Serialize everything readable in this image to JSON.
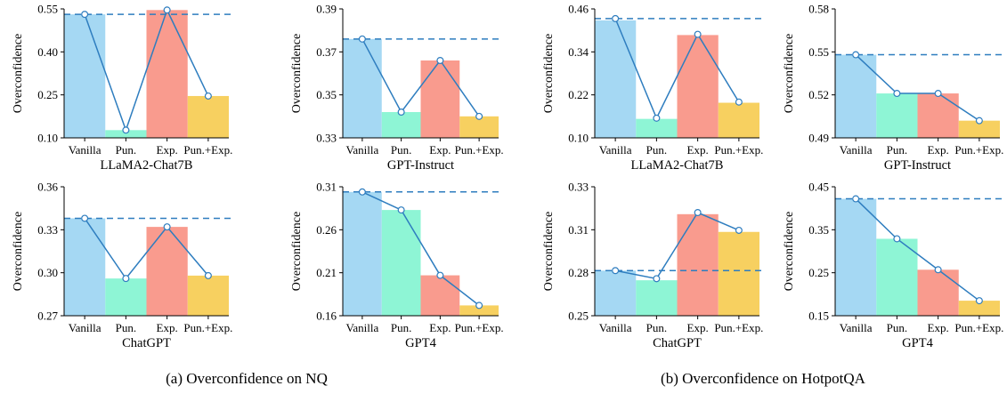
{
  "chart_data": [
    {
      "type": "bar",
      "panel": "(a)",
      "categories": [
        "Vanilla",
        "Pun.",
        "Exp.",
        "Pun.+Exp."
      ],
      "values": [
        0.531,
        0.127,
        0.546,
        0.246
      ],
      "line_values": [
        0.531,
        0.127,
        0.546,
        0.246
      ],
      "baseline": 0.531,
      "ylabel": "Overconfidence",
      "xlabel": "LLaMA2-Chat7B",
      "ylim": [
        0.1,
        0.55
      ],
      "yticks": [
        "0.10",
        "0.25",
        "0.40",
        "0.55"
      ]
    },
    {
      "type": "bar",
      "panel": "(a)",
      "categories": [
        "Vanilla",
        "Pun.",
        "Exp.",
        "Pun.+Exp."
      ],
      "values": [
        0.376,
        0.342,
        0.366,
        0.34
      ],
      "line_values": [
        0.376,
        0.342,
        0.366,
        0.34
      ],
      "baseline": 0.376,
      "ylabel": "Overconfidence",
      "xlabel": "GPT-Instruct",
      "ylim": [
        0.33,
        0.39
      ],
      "yticks": [
        "0.33",
        "0.35",
        "0.37",
        "0.39"
      ]
    },
    {
      "type": "bar",
      "panel": "(a)",
      "categories": [
        "Vanilla",
        "Pun.",
        "Exp.",
        "Pun.+Exp."
      ],
      "values": [
        0.338,
        0.296,
        0.332,
        0.298
      ],
      "line_values": [
        0.338,
        0.296,
        0.332,
        0.298
      ],
      "baseline": 0.338,
      "ylabel": "Overconfidence",
      "xlabel": "ChatGPT",
      "ylim": [
        0.27,
        0.36
      ],
      "yticks": [
        "0.27",
        "0.30",
        "0.33",
        "0.36"
      ]
    },
    {
      "type": "bar",
      "panel": "(a)",
      "categories": [
        "Vanilla",
        "Pun.",
        "Exp.",
        "Pun.+Exp."
      ],
      "values": [
        0.304,
        0.283,
        0.207,
        0.172
      ],
      "line_values": [
        0.304,
        0.283,
        0.207,
        0.172
      ],
      "baseline": 0.304,
      "ylabel": "Overconfidence",
      "xlabel": "GPT4",
      "ylim": [
        0.16,
        0.31
      ],
      "yticks": [
        "0.16",
        "0.21",
        "0.26",
        "0.31"
      ]
    },
    {
      "type": "bar",
      "panel": "(b)",
      "categories": [
        "Vanilla",
        "Pun.",
        "Exp.",
        "Pun.+Exp."
      ],
      "values": [
        0.428,
        0.153,
        0.387,
        0.198
      ],
      "line_values": [
        0.433,
        0.155,
        0.389,
        0.2
      ],
      "baseline": 0.433,
      "ylabel": "Overconfidence",
      "xlabel": "LLaMA2-Chat7B",
      "ylim": [
        0.1,
        0.46
      ],
      "yticks": [
        "0.10",
        "0.22",
        "0.34",
        "0.46"
      ]
    },
    {
      "type": "bar",
      "panel": "(b)",
      "categories": [
        "Vanilla",
        "Pun.",
        "Exp.",
        "Pun.+Exp."
      ],
      "values": [
        0.548,
        0.521,
        0.521,
        0.502
      ],
      "line_values": [
        0.548,
        0.521,
        0.521,
        0.502
      ],
      "baseline": 0.548,
      "ylabel": "Overconfidence",
      "xlabel": "GPT-Instruct",
      "ylim": [
        0.49,
        0.58
      ],
      "yticks": [
        "0.49",
        "0.52",
        "0.55",
        "0.58"
      ]
    },
    {
      "type": "bar",
      "panel": "(b)",
      "categories": [
        "Vanilla",
        "Pun.",
        "Exp.",
        "Pun.+Exp."
      ],
      "values": [
        0.278,
        0.272,
        0.313,
        0.302
      ],
      "line_values": [
        0.278,
        0.273,
        0.314,
        0.303
      ],
      "baseline": 0.278,
      "ylabel": "Overconfidence",
      "xlabel": "ChatGPT",
      "ylim": [
        0.25,
        0.33
      ],
      "yticks": [
        "0.25",
        "0.28",
        "0.31",
        "0.33"
      ]
    },
    {
      "type": "bar",
      "panel": "(b)",
      "categories": [
        "Vanilla",
        "Pun.",
        "Exp.",
        "Pun.+Exp."
      ],
      "values": [
        0.422,
        0.329,
        0.257,
        0.185
      ],
      "line_values": [
        0.422,
        0.329,
        0.257,
        0.185
      ],
      "baseline": 0.422,
      "ylabel": "Overconfidence",
      "xlabel": "GPT4",
      "ylim": [
        0.15,
        0.45
      ],
      "yticks": [
        "0.15",
        "0.25",
        "0.35",
        "0.45"
      ]
    }
  ],
  "bar_colors": [
    "#a5d8f3",
    "#8ef5d5",
    "#f99b8e",
    "#f7d060"
  ],
  "line_color": "#2e7dbf",
  "captions": [
    "(a)  Overconfidence on NQ",
    "(b)  Overconfidence on HotpotQA"
  ]
}
